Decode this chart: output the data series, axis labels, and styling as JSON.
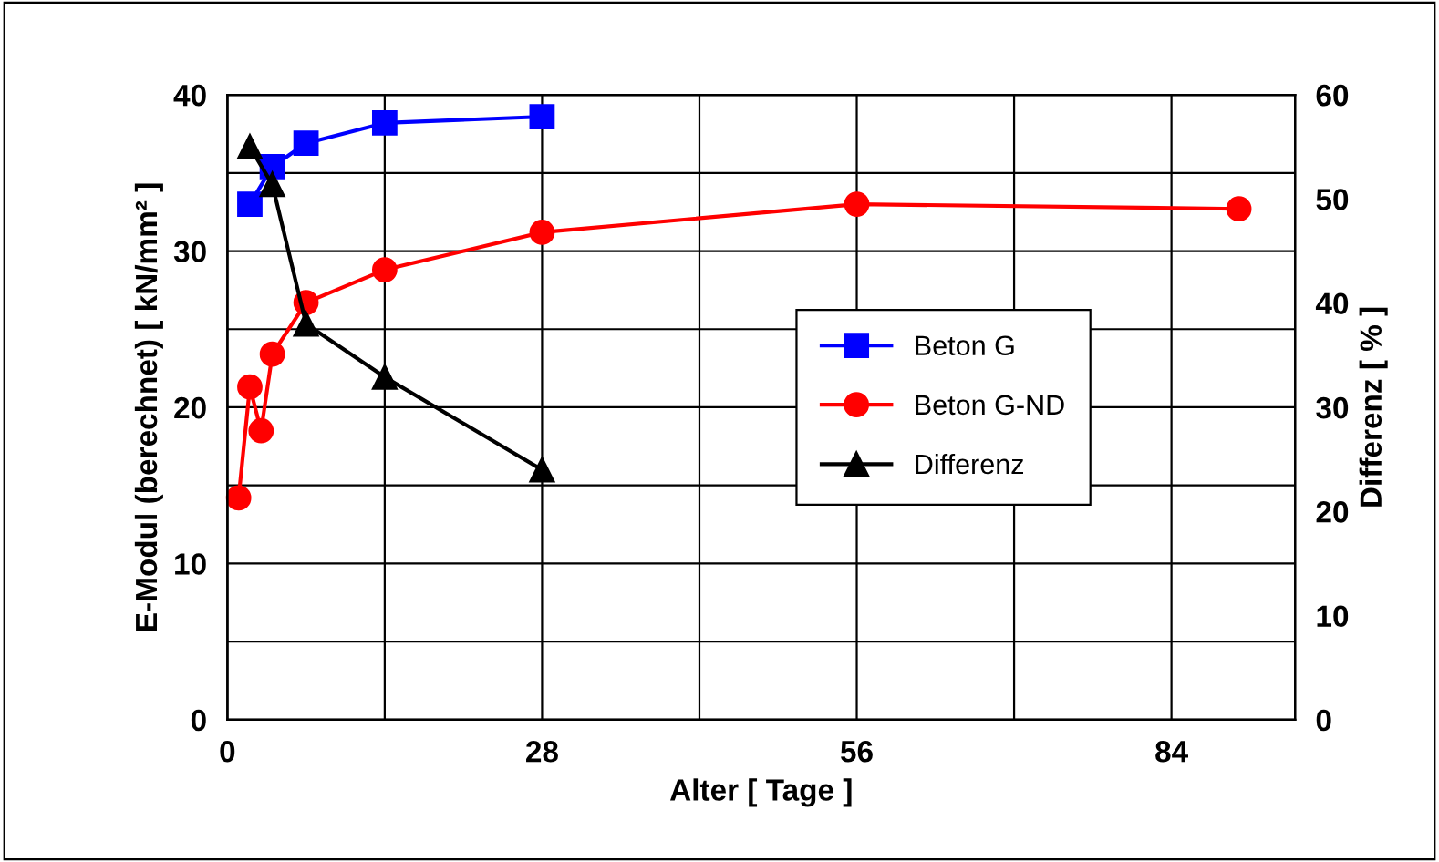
{
  "chart_data": {
    "type": "line",
    "xlabel": "Alter [ Tage ]",
    "ylabel": "E-Modul (berechnet) [ kN/mm² ]",
    "y2label": "Differenz [ % ]",
    "xlim": [
      0,
      95
    ],
    "xticks": [
      0,
      {
        "value": 14,
        "label": null
      },
      28,
      {
        "value": 42,
        "label": null
      },
      56,
      {
        "value": 70,
        "label": null
      },
      84
    ],
    "ylim": [
      0,
      40
    ],
    "yticks": [
      0,
      {
        "value": 5,
        "label": null
      },
      10,
      {
        "value": 15,
        "label": null
      },
      20,
      {
        "value": 25,
        "label": null
      },
      30,
      {
        "value": 35,
        "label": null
      },
      40
    ],
    "y2lim": [
      0,
      60
    ],
    "y2ticks": [
      0,
      10,
      20,
      30,
      40,
      50,
      60
    ],
    "grid": true,
    "legend": "right",
    "line_style": "solid",
    "series": [
      {
        "name": "Beton G",
        "color": "#0000ff",
        "marker": "square",
        "x": [
          2,
          4,
          7,
          14,
          28
        ],
        "values": [
          33.0,
          35.4,
          36.9,
          38.2,
          38.6
        ]
      },
      {
        "name": "Beton G-ND",
        "color": "#ff0000",
        "marker": "circle",
        "x": [
          1,
          2,
          3,
          4,
          7,
          14,
          28,
          56,
          90
        ],
        "values": [
          14.2,
          21.3,
          18.5,
          23.4,
          26.7,
          28.8,
          31.2,
          33.0,
          32.7
        ]
      },
      {
        "name": "Differenz",
        "color": "#000000",
        "marker": "triangle",
        "axis": "y2",
        "x": [
          2,
          4,
          7,
          14,
          28
        ],
        "values": [
          55,
          51.4,
          38,
          32.9,
          24
        ]
      }
    ]
  }
}
